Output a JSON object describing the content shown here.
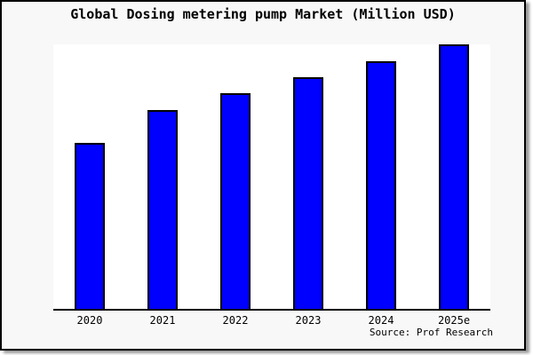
{
  "frame": {
    "background_color": "#f8f8f8",
    "border_color": "#000000",
    "shadow_color": "#999999"
  },
  "chart": {
    "title": "Global Dosing metering pump Market (Million USD)",
    "source": "Source: Prof Research",
    "plot_background_color": "#ffffff",
    "axis_color": "#000000",
    "bar_color": "#0000ff",
    "bar_border_color": "#000000"
  },
  "chart_data": {
    "type": "bar",
    "title": "Global Dosing metering pump Market (Million USD)",
    "categories": [
      "2020",
      "2021",
      "2022",
      "2023",
      "2024",
      "2025e"
    ],
    "values_pct_of_max": [
      62.7,
      75.1,
      81.4,
      87.7,
      93.7,
      100
    ],
    "values_note": "No numeric y-axis labels are shown in the image; values are bar heights measured relative to the tallest bar (2025e = 100).",
    "xlabel": "",
    "ylabel": "",
    "y_axis_labels_visible": false,
    "grid": false,
    "legend_position": "none",
    "annotations": [
      "Source: Prof Research"
    ]
  }
}
